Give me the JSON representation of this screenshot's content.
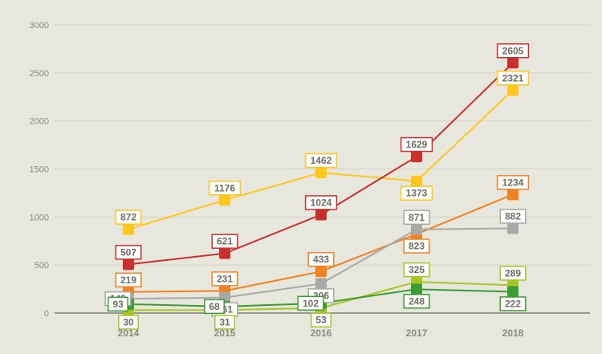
{
  "chart_data": {
    "type": "line",
    "title": "",
    "xlabel": "",
    "ylabel": "",
    "ylim": [
      0,
      3000
    ],
    "yticks": [
      0,
      500,
      1000,
      1500,
      2000,
      2500,
      3000
    ],
    "categories": [
      "2014",
      "2015",
      "2016",
      "2017",
      "2018"
    ],
    "grid": true,
    "legend": "none",
    "series": [
      {
        "color": "#ffc61e",
        "values": [
          872,
          1176,
          1462,
          1373,
          2321
        ]
      },
      {
        "color": "#c9302c",
        "values": [
          507,
          621,
          1024,
          1629,
          2605
        ]
      },
      {
        "color": "#f08221",
        "values": [
          219,
          231,
          433,
          823,
          1234
        ]
      },
      {
        "color": "#a8a8a6",
        "values": [
          149,
          161,
          306,
          871,
          882
        ]
      },
      {
        "color": "#a6c625",
        "values": [
          30,
          31,
          53,
          325,
          289
        ]
      },
      {
        "color": "#3c9b33",
        "values": [
          93,
          68,
          102,
          248,
          222
        ]
      }
    ]
  }
}
